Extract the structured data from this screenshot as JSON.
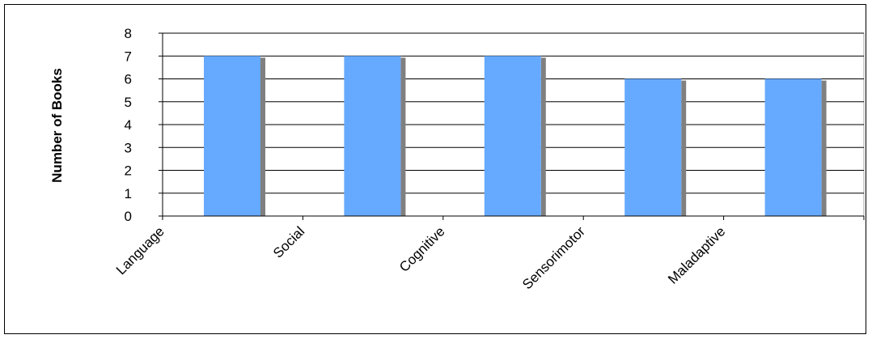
{
  "chart_data": {
    "type": "bar",
    "categories": [
      "Language",
      "Social",
      "Cognitive",
      "Sensorimotor",
      "Maladaptive"
    ],
    "values": [
      7,
      7,
      7,
      6,
      6
    ],
    "title": "",
    "xlabel": "",
    "ylabel": "Number of Books",
    "ylim": [
      0,
      8
    ],
    "yticks": [
      0,
      1,
      2,
      3,
      4,
      5,
      6,
      7,
      8
    ],
    "grid": true,
    "legend": "none"
  },
  "colors": {
    "bar": "#66aaff",
    "bar_shadow": "#808080",
    "grid": "#000000",
    "plot_border": "#a0a0a0"
  }
}
